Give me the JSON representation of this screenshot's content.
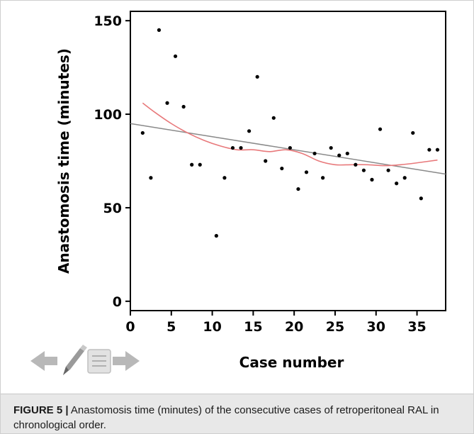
{
  "chart_data": {
    "type": "scatter",
    "title": "",
    "xlabel": "Case number",
    "ylabel": "Anastomosis time (minutes)",
    "xlim": [
      0,
      38.5
    ],
    "ylim": [
      -5,
      155
    ],
    "x_ticks": [
      0,
      5,
      10,
      15,
      20,
      25,
      30,
      35
    ],
    "y_ticks": [
      0,
      50,
      100,
      150
    ],
    "grid": false,
    "legend": "none",
    "points": [
      {
        "x": 1.5,
        "y": 90
      },
      {
        "x": 2.5,
        "y": 66
      },
      {
        "x": 3.5,
        "y": 145
      },
      {
        "x": 4.5,
        "y": 106
      },
      {
        "x": 5.5,
        "y": 131
      },
      {
        "x": 6.5,
        "y": 104
      },
      {
        "x": 7.5,
        "y": 73
      },
      {
        "x": 8.5,
        "y": 73
      },
      {
        "x": 10.5,
        "y": 35
      },
      {
        "x": 11.5,
        "y": 66
      },
      {
        "x": 12.5,
        "y": 82
      },
      {
        "x": 13.5,
        "y": 82
      },
      {
        "x": 14.5,
        "y": 91
      },
      {
        "x": 15.5,
        "y": 120
      },
      {
        "x": 16.5,
        "y": 75
      },
      {
        "x": 17.5,
        "y": 98
      },
      {
        "x": 18.5,
        "y": 71
      },
      {
        "x": 19.5,
        "y": 82
      },
      {
        "x": 20.5,
        "y": 60
      },
      {
        "x": 21.5,
        "y": 69
      },
      {
        "x": 22.5,
        "y": 79
      },
      {
        "x": 23.5,
        "y": 66
      },
      {
        "x": 24.5,
        "y": 82
      },
      {
        "x": 25.5,
        "y": 78
      },
      {
        "x": 26.5,
        "y": 79
      },
      {
        "x": 27.5,
        "y": 73
      },
      {
        "x": 28.5,
        "y": 70
      },
      {
        "x": 29.5,
        "y": 65
      },
      {
        "x": 30.5,
        "y": 92
      },
      {
        "x": 31.5,
        "y": 70
      },
      {
        "x": 32.5,
        "y": 63
      },
      {
        "x": 33.5,
        "y": 66
      },
      {
        "x": 34.5,
        "y": 90
      },
      {
        "x": 35.5,
        "y": 55
      },
      {
        "x": 36.5,
        "y": 81
      },
      {
        "x": 37.5,
        "y": 81
      }
    ],
    "linear_fit": {
      "x": [
        0,
        38.5
      ],
      "y": [
        95,
        68
      ],
      "color": "#8a8a8a"
    },
    "smooth_fit": {
      "x": [
        1.5,
        3,
        5,
        7,
        9,
        11,
        13,
        15,
        17,
        19,
        21,
        23,
        25,
        27,
        29,
        31,
        33,
        35,
        37.5
      ],
      "y": [
        106,
        101,
        95,
        90,
        86,
        83,
        81,
        81,
        80,
        81,
        79,
        75,
        73,
        73,
        73,
        72.5,
        73,
        74,
        75.5
      ],
      "color": "#e8797b"
    }
  },
  "nav_icons": {
    "back": "arrow-left-icon",
    "edit": "pencil-icon",
    "notes": "notes-icon",
    "forward": "arrow-right-icon",
    "icon_color": "#b8b8b8"
  },
  "caption": {
    "label": "FIGURE 5 |",
    "text": "Anastomosis time (minutes) of the consecutive cases of retroperitoneal RAL in chronological order."
  }
}
